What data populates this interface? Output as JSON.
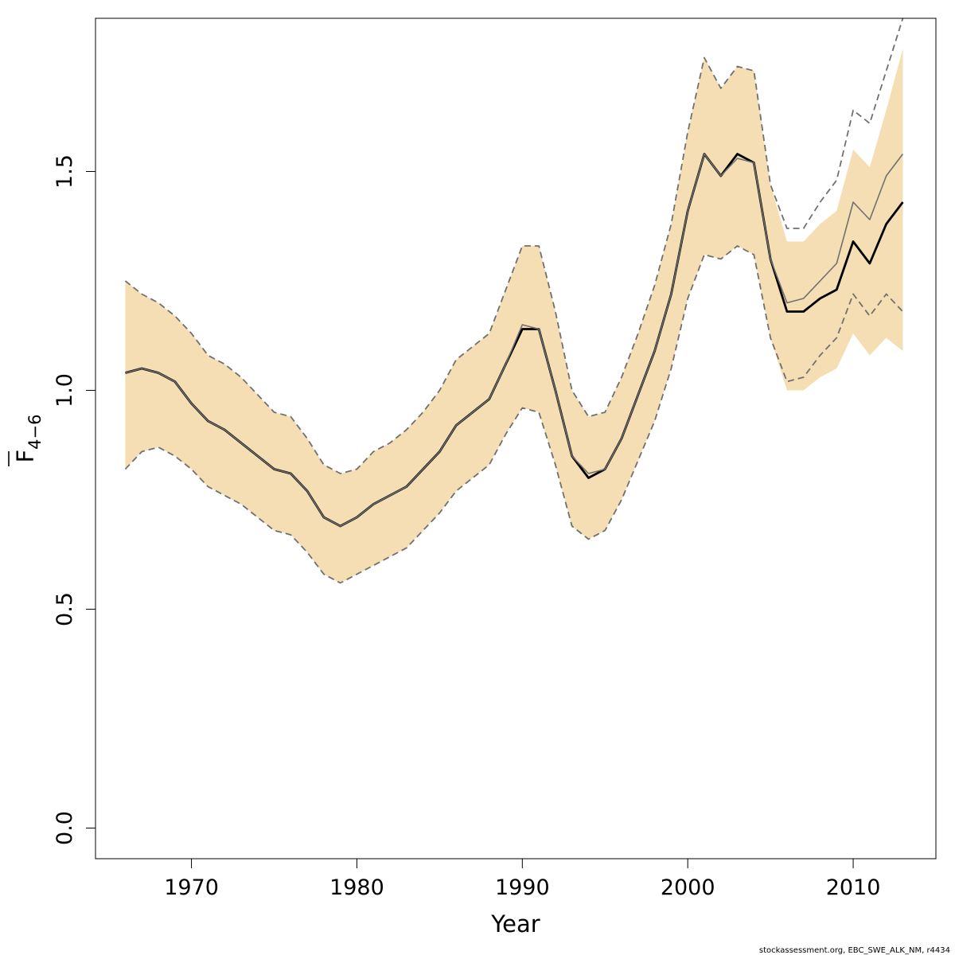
{
  "chart_data": {
    "type": "line",
    "xlabel": "Year",
    "ylabel_base": "F",
    "ylabel_subscript": "4−6",
    "xlim": [
      1964.2,
      2015.0
    ],
    "ylim": [
      -0.07,
      1.85
    ],
    "xticks": [
      1970,
      1980,
      1990,
      2000,
      2010
    ],
    "xtick_labels": [
      "1970",
      "1980",
      "1990",
      "2000",
      "2010"
    ],
    "yticks": [
      0.0,
      0.5,
      1.0,
      1.5
    ],
    "ytick_labels": [
      "0.0",
      "0.5",
      "1.0",
      "1.5"
    ],
    "grid": false,
    "colors": {
      "band": "#f5deb3",
      "estimate": "#000000",
      "previous": "#707070",
      "previous_ci": "#707070"
    },
    "x": [
      1966,
      1967,
      1968,
      1969,
      1970,
      1971,
      1972,
      1973,
      1974,
      1975,
      1976,
      1977,
      1978,
      1979,
      1980,
      1981,
      1982,
      1983,
      1984,
      1985,
      1986,
      1987,
      1988,
      1989,
      1990,
      1991,
      1992,
      1993,
      1994,
      1995,
      1996,
      1997,
      1998,
      1999,
      2000,
      2001,
      2002,
      2003,
      2004,
      2005,
      2006,
      2007,
      2008,
      2009,
      2010,
      2011,
      2012,
      2013
    ],
    "series": [
      {
        "role": "confidence_band",
        "lower": [
          0.82,
          0.86,
          0.87,
          0.85,
          0.82,
          0.78,
          0.76,
          0.74,
          0.71,
          0.68,
          0.67,
          0.63,
          0.58,
          0.56,
          0.58,
          0.6,
          0.62,
          0.64,
          0.68,
          0.72,
          0.77,
          0.8,
          0.83,
          0.9,
          0.96,
          0.95,
          0.83,
          0.69,
          0.66,
          0.68,
          0.75,
          0.84,
          0.93,
          1.05,
          1.21,
          1.31,
          1.3,
          1.33,
          1.31,
          1.12,
          1.0,
          1.0,
          1.03,
          1.05,
          1.13,
          1.08,
          1.12,
          1.09
        ],
        "upper": [
          1.25,
          1.22,
          1.2,
          1.17,
          1.13,
          1.08,
          1.06,
          1.03,
          0.99,
          0.95,
          0.94,
          0.89,
          0.83,
          0.81,
          0.82,
          0.86,
          0.88,
          0.91,
          0.95,
          1.0,
          1.07,
          1.1,
          1.13,
          1.23,
          1.33,
          1.33,
          1.18,
          1.0,
          0.94,
          0.95,
          1.03,
          1.13,
          1.24,
          1.38,
          1.59,
          1.76,
          1.69,
          1.74,
          1.73,
          1.47,
          1.34,
          1.34,
          1.38,
          1.41,
          1.55,
          1.51,
          1.64,
          1.78
        ]
      },
      {
        "role": "estimate",
        "values": [
          1.04,
          1.05,
          1.04,
          1.02,
          0.97,
          0.93,
          0.91,
          0.88,
          0.85,
          0.82,
          0.81,
          0.77,
          0.71,
          0.69,
          0.71,
          0.74,
          0.76,
          0.78,
          0.82,
          0.86,
          0.92,
          0.95,
          0.98,
          1.06,
          1.14,
          1.14,
          1.0,
          0.85,
          0.8,
          0.82,
          0.89,
          0.99,
          1.09,
          1.22,
          1.41,
          1.54,
          1.49,
          1.54,
          1.52,
          1.3,
          1.18,
          1.18,
          1.21,
          1.23,
          1.34,
          1.29,
          1.38,
          1.43
        ]
      },
      {
        "role": "previous_estimate",
        "values": [
          1.04,
          1.05,
          1.04,
          1.02,
          0.97,
          0.93,
          0.91,
          0.88,
          0.85,
          0.82,
          0.81,
          0.77,
          0.71,
          0.69,
          0.71,
          0.74,
          0.76,
          0.78,
          0.82,
          0.86,
          0.92,
          0.95,
          0.98,
          1.06,
          1.15,
          1.14,
          1.0,
          0.85,
          0.81,
          0.82,
          0.89,
          0.99,
          1.09,
          1.22,
          1.41,
          1.54,
          1.49,
          1.53,
          1.52,
          1.3,
          1.2,
          1.21,
          1.25,
          1.29,
          1.43,
          1.39,
          1.49,
          1.54
        ]
      },
      {
        "role": "previous_ci_lower",
        "values": [
          0.82,
          0.86,
          0.87,
          0.85,
          0.82,
          0.78,
          0.76,
          0.74,
          0.71,
          0.68,
          0.67,
          0.63,
          0.58,
          0.56,
          0.58,
          0.6,
          0.62,
          0.64,
          0.68,
          0.72,
          0.77,
          0.8,
          0.83,
          0.9,
          0.96,
          0.95,
          0.83,
          0.69,
          0.66,
          0.68,
          0.75,
          0.84,
          0.93,
          1.05,
          1.21,
          1.31,
          1.3,
          1.33,
          1.31,
          1.12,
          1.02,
          1.03,
          1.08,
          1.12,
          1.22,
          1.17,
          1.22,
          1.18
        ]
      },
      {
        "role": "previous_ci_upper",
        "values": [
          1.25,
          1.22,
          1.2,
          1.17,
          1.13,
          1.08,
          1.06,
          1.03,
          0.99,
          0.95,
          0.94,
          0.89,
          0.83,
          0.81,
          0.82,
          0.86,
          0.88,
          0.91,
          0.95,
          1.0,
          1.07,
          1.1,
          1.13,
          1.23,
          1.33,
          1.33,
          1.18,
          1.0,
          0.94,
          0.95,
          1.03,
          1.13,
          1.24,
          1.38,
          1.59,
          1.76,
          1.69,
          1.74,
          1.73,
          1.47,
          1.37,
          1.37,
          1.43,
          1.48,
          1.64,
          1.61,
          1.73,
          1.85
        ]
      }
    ]
  },
  "footer": "stockassessment.org, EBC_SWE_ALK_NM, r4434"
}
